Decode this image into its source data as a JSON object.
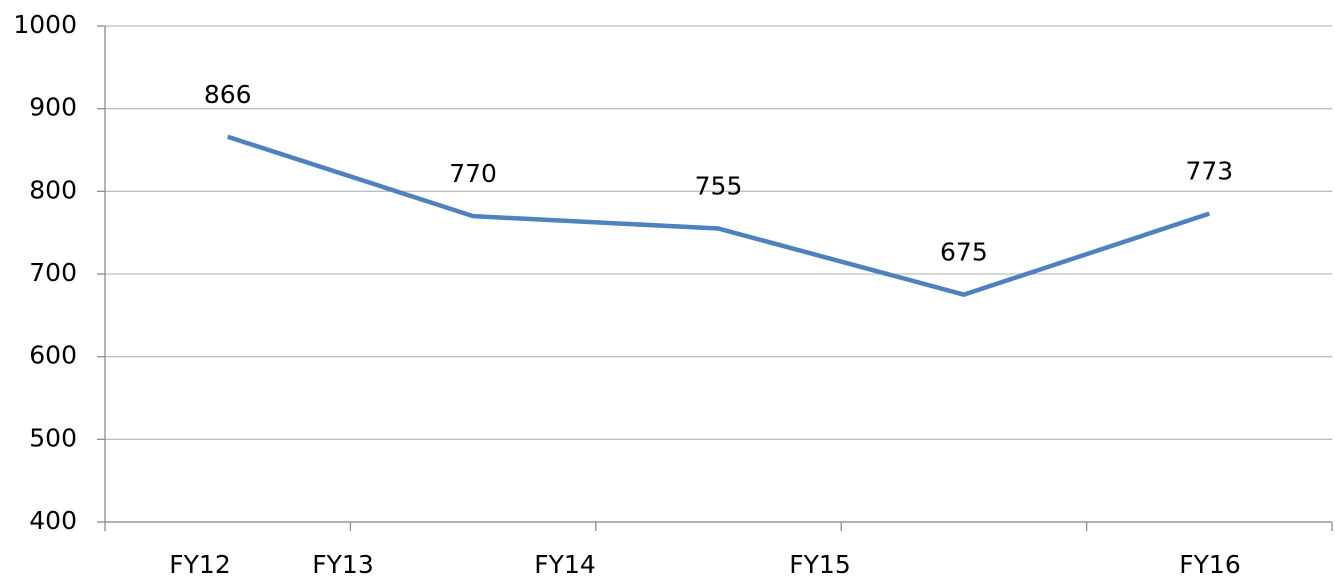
{
  "chart_data": {
    "type": "line",
    "categories": [
      "FY12",
      "FY13",
      "FY14",
      "FY15",
      "FY16"
    ],
    "values": [
      866,
      770,
      755,
      675,
      773
    ],
    "color": "#4f81bd",
    "ylim": [
      400,
      1000
    ],
    "yticks": [
      400,
      500,
      600,
      700,
      800,
      900,
      1000
    ],
    "grid": true
  }
}
